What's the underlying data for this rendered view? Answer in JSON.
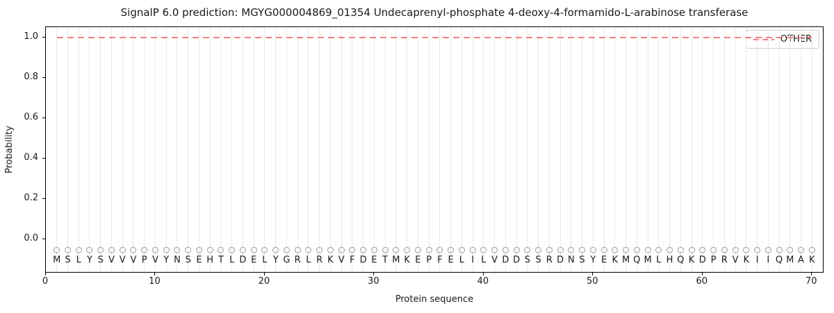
{
  "chart_data": {
    "type": "line",
    "title": "SignalP 6.0 prediction: MGYG000004869_01354 Undecaprenyl-phosphate 4-deoxy-4-formamido-L-arabinose transferase",
    "xlabel": "Protein sequence",
    "ylabel": "Probability",
    "xlim": [
      0,
      71
    ],
    "ylim": [
      -0.16,
      1.05
    ],
    "x_ticks": [
      0,
      10,
      20,
      30,
      40,
      50,
      60,
      70
    ],
    "y_ticks": [
      "0.0",
      "0.2",
      "0.4",
      "0.6",
      "0.8",
      "1.0"
    ],
    "grid": "vertical-line-per-residue",
    "legend": {
      "position": "upper-right",
      "entries": [
        {
          "label": "OTHER",
          "style": "dashed",
          "color": "#f08080"
        }
      ]
    },
    "sequence": "MSLYSVVVPVYNSEHTLDELYGRLRKVFDETMKEPFELILVDDSSRDNSYEKMQMLHQKDPRVKIIQMAK",
    "marker_row_y": -0.05,
    "letter_row_y": -0.1,
    "series": [
      {
        "name": "OTHER",
        "style": "dashed",
        "color": "#f08080",
        "x": [
          1,
          2,
          3,
          4,
          5,
          6,
          7,
          8,
          9,
          10,
          11,
          12,
          13,
          14,
          15,
          16,
          17,
          18,
          19,
          20,
          21,
          22,
          23,
          24,
          25,
          26,
          27,
          28,
          29,
          30,
          31,
          32,
          33,
          34,
          35,
          36,
          37,
          38,
          39,
          40,
          41,
          42,
          43,
          44,
          45,
          46,
          47,
          48,
          49,
          50,
          51,
          52,
          53,
          54,
          55,
          56,
          57,
          58,
          59,
          60,
          61,
          62,
          63,
          64,
          65,
          66,
          67,
          68,
          69,
          70
        ],
        "values": [
          1.0,
          1.0,
          1.0,
          1.0,
          1.0,
          1.0,
          1.0,
          1.0,
          1.0,
          1.0,
          1.0,
          1.0,
          1.0,
          1.0,
          1.0,
          1.0,
          1.0,
          1.0,
          1.0,
          1.0,
          1.0,
          1.0,
          1.0,
          1.0,
          1.0,
          1.0,
          1.0,
          1.0,
          1.0,
          1.0,
          1.0,
          1.0,
          1.0,
          1.0,
          1.0,
          1.0,
          1.0,
          1.0,
          1.0,
          1.0,
          1.0,
          1.0,
          1.0,
          1.0,
          1.0,
          1.0,
          1.0,
          1.0,
          1.0,
          1.0,
          1.0,
          1.0,
          1.0,
          1.0,
          1.0,
          1.0,
          1.0,
          1.0,
          1.0,
          1.0,
          1.0,
          1.0,
          1.0,
          1.0,
          1.0,
          1.0,
          1.0,
          1.0,
          1.0,
          1.0
        ]
      }
    ],
    "colors": {
      "line_other": "#f08080",
      "grid": "#e9e9e9",
      "marker_stroke": "#999999",
      "text": "#1a1a1a",
      "spine": "#000000"
    }
  }
}
